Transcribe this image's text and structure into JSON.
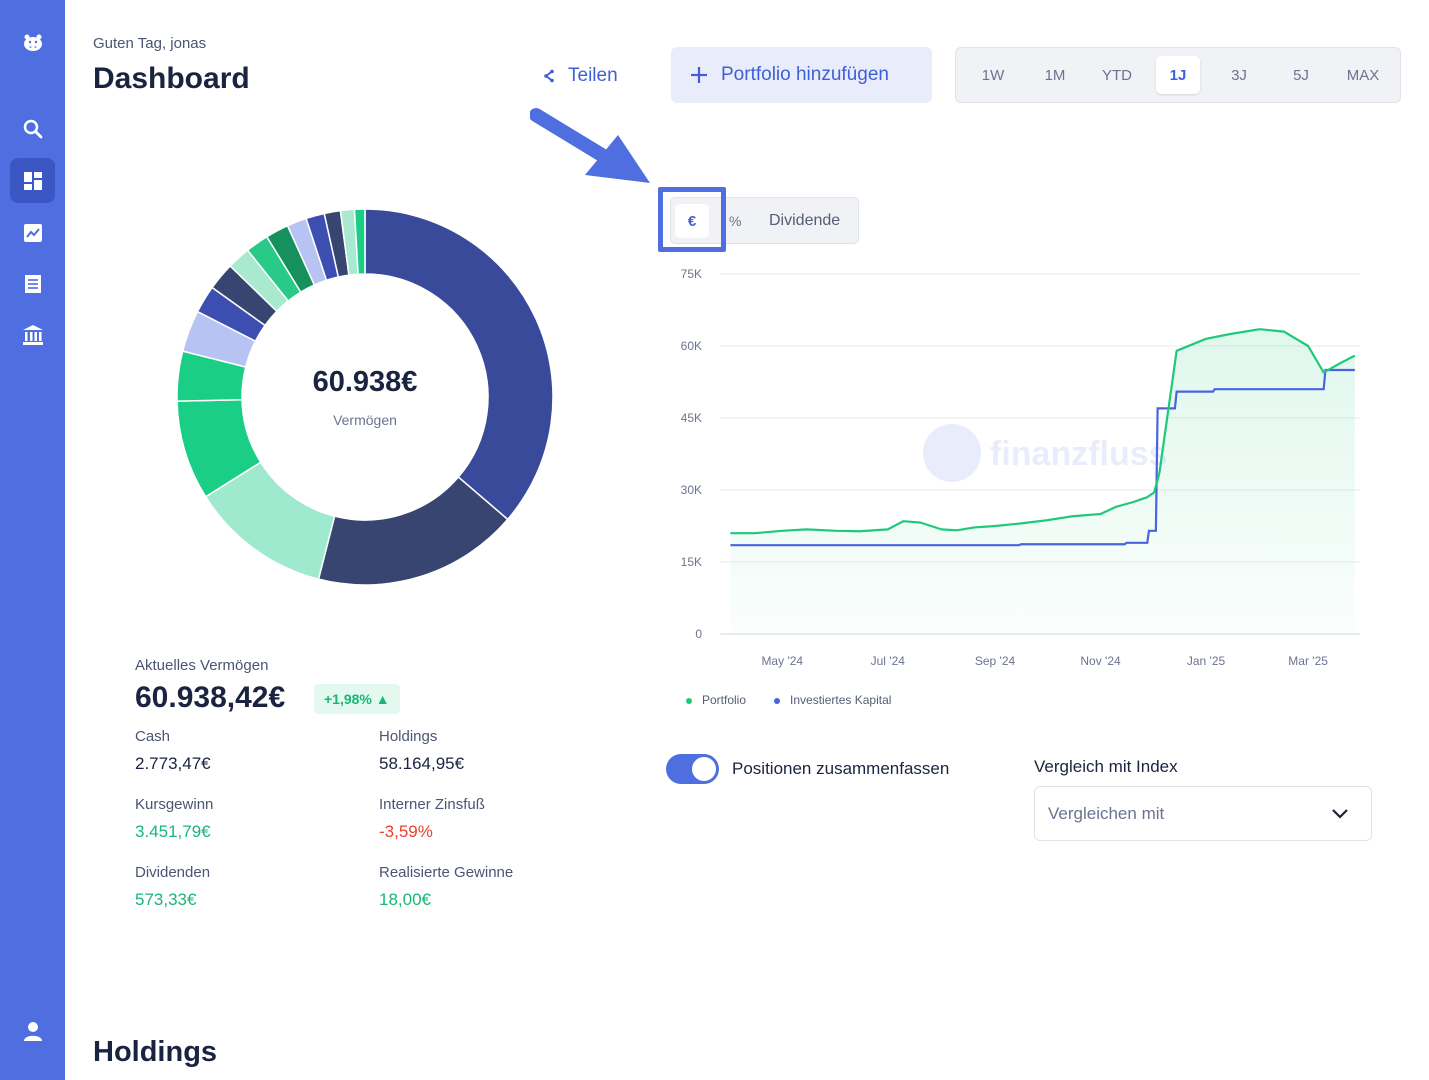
{
  "header": {
    "greeting": "Guten Tag, jonas",
    "title": "Dashboard",
    "share_label": "Teilen",
    "add_portfolio_label": "Portfolio hinzufügen",
    "ranges": [
      "1W",
      "1M",
      "YTD",
      "1J",
      "3J",
      "5J",
      "MAX"
    ],
    "active_range": "1J"
  },
  "sidebar": {
    "items": [
      "logo",
      "search",
      "dashboard",
      "analytics",
      "transactions",
      "institutions",
      "profile"
    ],
    "active": "dashboard"
  },
  "unit_toggle": {
    "euro": "€",
    "percent": "%",
    "dividend": "Dividende",
    "active": "€"
  },
  "donut": {
    "center_value": "60.938€",
    "center_label": "Vermögen",
    "segments": [
      {
        "value": 36.5,
        "color": "#394a9a"
      },
      {
        "value": 17.8,
        "color": "#374570"
      },
      {
        "value": 12.2,
        "color": "#9fe9cf"
      },
      {
        "value": 8.6,
        "color": "#1bce86"
      },
      {
        "value": 4.3,
        "color": "#1bce86"
      },
      {
        "value": 3.6,
        "color": "#b7c3f2"
      },
      {
        "value": 2.4,
        "color": "#3c4fb0"
      },
      {
        "value": 2.4,
        "color": "#374570"
      },
      {
        "value": 2.0,
        "color": "#a9e9cf"
      },
      {
        "value": 2.0,
        "color": "#29c987"
      },
      {
        "value": 2.0,
        "color": "#16915e"
      },
      {
        "value": 1.7,
        "color": "#b7c3f2"
      },
      {
        "value": 1.6,
        "color": "#3c4fb0"
      },
      {
        "value": 1.4,
        "color": "#374570"
      },
      {
        "value": 1.2,
        "color": "#a9e9cf"
      },
      {
        "value": 0.9,
        "color": "#1bce86"
      }
    ]
  },
  "summary": {
    "current_label": "Aktuelles Vermögen",
    "current_value": "60.938,42€",
    "change_badge": "+1,98% ▲",
    "cash_label": "Cash",
    "cash_value": "2.773,47€",
    "holdings_label": "Holdings",
    "holdings_value": "58.164,95€",
    "kursgewinn_label": "Kursgewinn",
    "kursgewinn_value": "3.451,79€",
    "irr_label": "Interner Zinsfuß",
    "irr_value": "-3,59%",
    "dividends_label": "Dividenden",
    "dividends_value": "573,33€",
    "realized_label": "Realisierte Gewinne",
    "realized_value": "18,00€"
  },
  "colors": {
    "accent": "#4f6fe0",
    "positive": "#17b877",
    "negative": "#e8432f",
    "portfolio_line": "#1fc97a",
    "invested_line": "#4a64e0"
  },
  "chart_data": {
    "type": "line",
    "yticks": [
      "0",
      "15K",
      "30K",
      "45K",
      "60K",
      "75K"
    ],
    "ylim": [
      0,
      75000
    ],
    "xticks": [
      "May '24",
      "Jul '24",
      "Sep '24",
      "Nov '24",
      "Jan '25",
      "Mar '25"
    ],
    "watermark": "finanzfluss",
    "series": [
      {
        "name": "Portfolio",
        "color": "#1fc97a",
        "x": [
          "2024-04-01",
          "2024-04-15",
          "2024-05-01",
          "2024-05-15",
          "2024-06-01",
          "2024-06-15",
          "2024-07-01",
          "2024-07-10",
          "2024-07-20",
          "2024-08-01",
          "2024-08-10",
          "2024-08-20",
          "2024-09-01",
          "2024-09-15",
          "2024-10-01",
          "2024-10-15",
          "2024-11-01",
          "2024-11-10",
          "2024-11-20",
          "2024-11-28",
          "2024-12-02",
          "2024-12-05",
          "2024-12-15",
          "2025-01-01",
          "2025-01-15",
          "2025-02-01",
          "2025-02-15",
          "2025-03-01",
          "2025-03-10",
          "2025-03-20",
          "2025-03-28"
        ],
        "values": [
          21000,
          21000,
          21500,
          21800,
          21500,
          21400,
          21800,
          23500,
          23200,
          21800,
          21600,
          22200,
          22500,
          23000,
          23700,
          24500,
          25000,
          26500,
          27500,
          28500,
          29500,
          33500,
          59000,
          61500,
          62500,
          63500,
          63000,
          60000,
          54500,
          56500,
          58000
        ]
      },
      {
        "name": "Investiertes Kapital",
        "color": "#4a64e0",
        "x": [
          "2024-04-01",
          "2024-09-15",
          "2024-09-16",
          "2024-11-15",
          "2024-11-16",
          "2024-11-28",
          "2024-11-29",
          "2024-12-03",
          "2024-12-04",
          "2024-12-14",
          "2024-12-15",
          "2025-01-05",
          "2025-01-06",
          "2025-03-10",
          "2025-03-11",
          "2025-03-28"
        ],
        "values": [
          18500,
          18500,
          18700,
          18700,
          19000,
          19000,
          21500,
          21500,
          47000,
          47000,
          50500,
          50500,
          51000,
          51000,
          55000,
          55000
        ]
      }
    ]
  },
  "options": {
    "toggle_label": "Positionen zusammenfassen",
    "toggle_on": true,
    "index_label": "Vergleich mit Index",
    "index_placeholder": "Vergleichen mit"
  },
  "holdings": {
    "title": "Holdings"
  }
}
